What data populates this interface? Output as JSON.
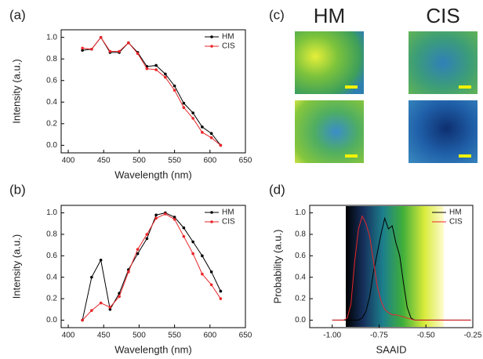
{
  "chart_data": [
    {
      "type": "line",
      "panel_label": "(a)",
      "x_label": "Wavelength (nm)",
      "y_label": "Intensity (a.u.)",
      "x": [
        420,
        433,
        446,
        459,
        472,
        485,
        498,
        511,
        524,
        537,
        550,
        563,
        576,
        589,
        602,
        615
      ],
      "series": [
        {
          "name": "HM",
          "color": "#000000",
          "values": [
            0.88,
            0.89,
            1.0,
            0.86,
            0.86,
            0.95,
            0.86,
            0.73,
            0.74,
            0.66,
            0.55,
            0.39,
            0.3,
            0.17,
            0.11,
            0.0
          ]
        },
        {
          "name": "CIS",
          "color": "#e8262a",
          "values": [
            0.9,
            0.89,
            1.0,
            0.87,
            0.87,
            0.95,
            0.85,
            0.71,
            0.7,
            0.63,
            0.51,
            0.35,
            0.25,
            0.12,
            0.07,
            0.0
          ]
        }
      ],
      "xlim": [
        390,
        650
      ],
      "xticks": [
        400,
        450,
        500,
        550,
        600,
        650
      ],
      "ylim": [
        -0.07,
        1.07
      ],
      "yticks": [
        {
          "value": 0,
          "label": "0.0"
        },
        {
          "value": 0.2,
          "label": "0.2"
        },
        {
          "value": 0.4,
          "label": "0.4"
        },
        {
          "value": 0.6,
          "label": "0.6"
        },
        {
          "value": 0.8,
          "label": "0.8"
        },
        {
          "value": 1,
          "label": "1.0"
        }
      ],
      "markers": true,
      "legend": "upper right",
      "grid": false
    },
    {
      "type": "line",
      "panel_label": "(b)",
      "x_label": "Wavelength (nm)",
      "y_label": "Intensity (a.u.)",
      "x": [
        420,
        433,
        446,
        459,
        472,
        485,
        498,
        511,
        524,
        537,
        550,
        563,
        576,
        589,
        602,
        615
      ],
      "series": [
        {
          "name": "HM",
          "color": "#000000",
          "values": [
            0.0,
            0.4,
            0.56,
            0.1,
            0.25,
            0.47,
            0.62,
            0.76,
            0.98,
            1.0,
            0.96,
            0.86,
            0.73,
            0.6,
            0.45,
            0.27
          ]
        },
        {
          "name": "CIS",
          "color": "#e8262a",
          "values": [
            0.0,
            0.09,
            0.16,
            0.12,
            0.22,
            0.45,
            0.66,
            0.8,
            0.95,
            0.99,
            0.94,
            0.78,
            0.62,
            0.43,
            0.33,
            0.2
          ]
        }
      ],
      "xlim": [
        390,
        650
      ],
      "xticks": [
        400,
        450,
        500,
        550,
        600,
        650
      ],
      "ylim": [
        -0.07,
        1.07
      ],
      "yticks": [
        {
          "value": 0,
          "label": "0.0"
        },
        {
          "value": 0.2,
          "label": "0.2"
        },
        {
          "value": 0.4,
          "label": "0.4"
        },
        {
          "value": 0.6,
          "label": "0.6"
        },
        {
          "value": 0.8,
          "label": "0.8"
        },
        {
          "value": 1,
          "label": "1.0"
        }
      ],
      "markers": true,
      "legend": "upper right",
      "grid": false
    },
    {
      "type": "line",
      "panel_label": "(d)",
      "x_label": "SAAID",
      "y_label": "Probability (a.u.)",
      "x": [
        -1.0,
        -0.98,
        -0.96,
        -0.94,
        -0.92,
        -0.9,
        -0.88,
        -0.86,
        -0.84,
        -0.82,
        -0.8,
        -0.78,
        -0.76,
        -0.74,
        -0.72,
        -0.7,
        -0.68,
        -0.66,
        -0.64,
        -0.62,
        -0.6,
        -0.58,
        -0.56,
        -0.54,
        -0.52,
        -0.5,
        -0.48,
        -0.46,
        -0.44,
        -0.42,
        -0.4,
        -0.38,
        -0.36,
        -0.34,
        -0.32,
        -0.3,
        -0.28,
        -0.26
      ],
      "series": [
        {
          "name": "HM",
          "color": "#000000",
          "values": [
            0,
            0,
            0,
            0,
            0,
            0,
            0,
            0,
            0.02,
            0.08,
            0.22,
            0.45,
            0.62,
            0.8,
            0.95,
            0.85,
            0.88,
            0.72,
            0.6,
            0.35,
            0.12,
            0.02,
            0,
            0,
            0,
            0,
            0,
            0,
            0,
            0,
            0,
            0,
            0,
            0,
            0,
            0,
            0,
            0
          ]
        },
        {
          "name": "CIS",
          "color": "#e8262a",
          "values": [
            0,
            0,
            0,
            0,
            0.02,
            0.15,
            0.55,
            0.85,
            0.97,
            0.9,
            0.78,
            0.55,
            0.32,
            0.18,
            0.1,
            0.07,
            0.05,
            0.05,
            0.04,
            0.03,
            0.02,
            0.01,
            0,
            0,
            0,
            0,
            0,
            0,
            0,
            0,
            0,
            0,
            0,
            0,
            0,
            0,
            0,
            0
          ]
        }
      ],
      "xlim": [
        -1.12,
        -0.25
      ],
      "xticks": [
        {
          "value": -1,
          "label": "-1.00"
        },
        {
          "value": -0.75,
          "label": "-0.75"
        },
        {
          "value": -0.5,
          "label": "-0.50"
        },
        {
          "value": -0.25,
          "label": "-0.25"
        }
      ],
      "ylim": [
        -0.07,
        1.07
      ],
      "yticks": [
        {
          "value": 0,
          "label": "0.0"
        },
        {
          "value": 0.2,
          "label": "0.2"
        },
        {
          "value": 0.4,
          "label": "0.4"
        },
        {
          "value": 0.6,
          "label": "0.6"
        },
        {
          "value": 0.8,
          "label": "0.8"
        },
        {
          "value": 1,
          "label": "1.0"
        }
      ],
      "markers": false,
      "legend": "upper right",
      "grid": false
    }
  ],
  "image_panel": {
    "panel_label": "(c)",
    "columns": [
      "HM",
      "CIS"
    ]
  }
}
